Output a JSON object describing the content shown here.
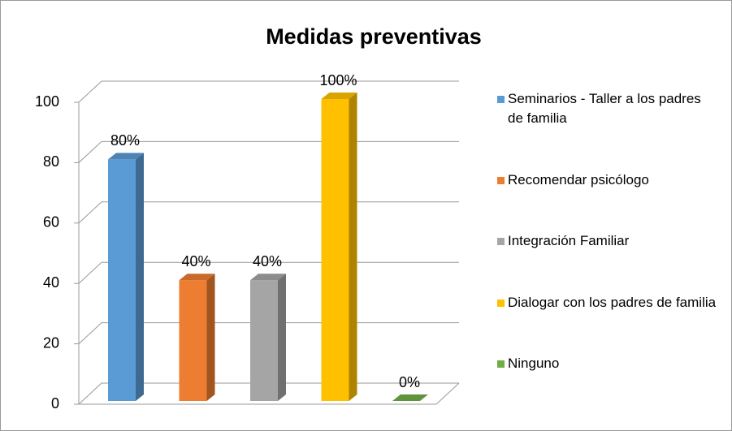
{
  "chart_data": {
    "type": "bar3d",
    "title": "Medidas preventivas",
    "series": [
      {
        "name": "Seminarios - Taller a los padres de familia",
        "color": "#5b9bd5",
        "values": [
          80
        ],
        "value_labels": [
          "80%"
        ]
      },
      {
        "name": "Recomendar psicólogo",
        "color": "#ed7d31",
        "values": [
          40
        ],
        "value_labels": [
          "40%"
        ]
      },
      {
        "name": "Integración Familiar",
        "color": "#a5a5a5",
        "values": [
          40
        ],
        "value_labels": [
          "40%"
        ]
      },
      {
        "name": "Dialogar con los padres de familia",
        "color": "#ffc000",
        "values": [
          100
        ],
        "value_labels": [
          "100%"
        ]
      },
      {
        "name": "Ninguno",
        "color": "#70ad47",
        "values": [
          0
        ],
        "value_labels": [
          "0%"
        ]
      }
    ],
    "ylim": [
      0,
      100
    ],
    "yticks": [
      0,
      20,
      40,
      60,
      80,
      100
    ],
    "grid": true,
    "legend": "right"
  }
}
